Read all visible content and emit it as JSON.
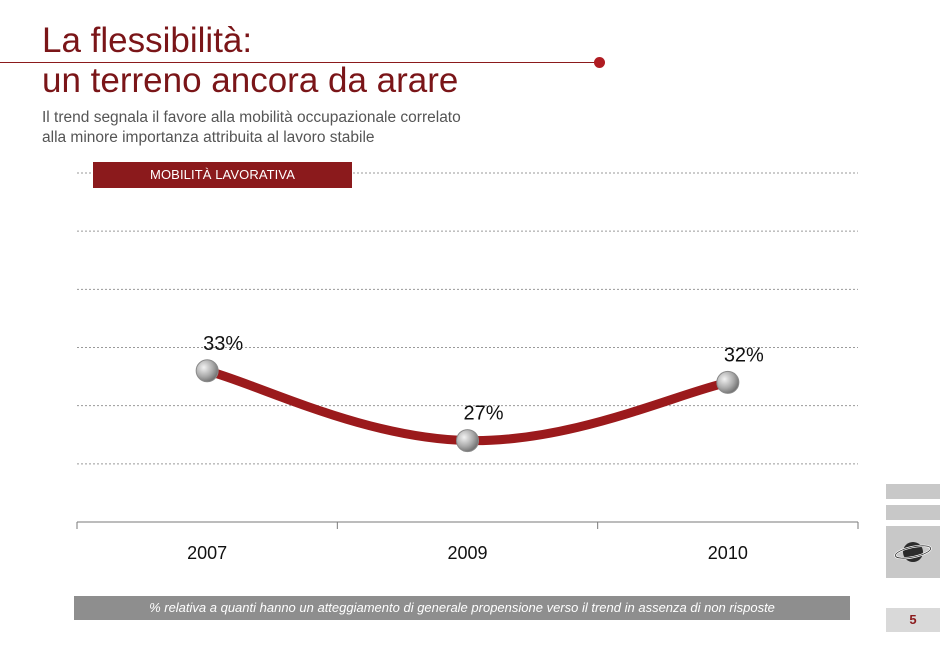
{
  "header": {
    "title_line1": "La flessibilità:",
    "title_line2": "un terreno ancora da arare",
    "subtitle_line1": "Il trend segnala il favore alla mobilità occupazionale correlato",
    "subtitle_line2": "alla minore importanza attribuita al lavoro stabile"
  },
  "chart_data": {
    "type": "line",
    "title": "MOBILITÀ LAVORATIVA",
    "categories": [
      "2007",
      "2009",
      "2010"
    ],
    "values": [
      33,
      27,
      32
    ],
    "value_labels": [
      "33%",
      "27%",
      "32%"
    ],
    "series": [
      {
        "values": [
          33,
          27,
          32
        ]
      }
    ],
    "ylim": [
      20,
      50
    ],
    "grid": true,
    "colors": {
      "line": "#9b1a1c",
      "marker": "#a6a6a6"
    }
  },
  "footnote": "% relativa a quanti hanno un atteggiamento di generale propensione verso  il trend in assenza di non risposte",
  "page_number": "5",
  "side_icon": "planet-ring-icon"
}
